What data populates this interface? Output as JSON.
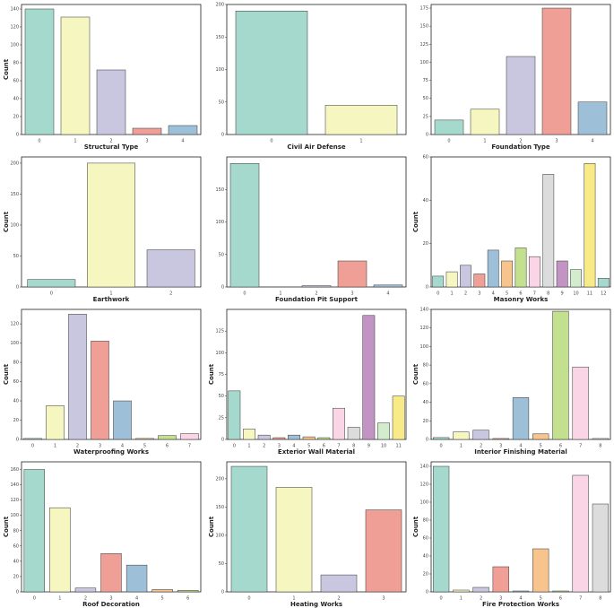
{
  "chart_data": [
    {
      "type": "bar",
      "xlabel": "Structural Type",
      "ylabel": "Count",
      "categories": [
        "0",
        "1",
        "2",
        "3",
        "4"
      ],
      "values": [
        140,
        131,
        72,
        7,
        10
      ],
      "colors": [
        "#a6d9ce",
        "#f6f6c1",
        "#c9c6df",
        "#ef9f96",
        "#9ebfd8"
      ],
      "ylim": [
        0,
        145
      ],
      "yticks": [
        0,
        20,
        40,
        60,
        80,
        100,
        120,
        140
      ]
    },
    {
      "type": "bar",
      "xlabel": "Civil Air Defense",
      "categories": [
        "0",
        "1"
      ],
      "values": [
        190,
        45
      ],
      "colors": [
        "#a6d9ce",
        "#f6f6c1"
      ],
      "ylim": [
        0,
        200
      ],
      "yticks": [
        0,
        50,
        100,
        150,
        200
      ]
    },
    {
      "type": "bar",
      "xlabel": "Foundation Type",
      "categories": [
        "0",
        "1",
        "2",
        "3",
        "4"
      ],
      "values": [
        20,
        35,
        108,
        175,
        45
      ],
      "colors": [
        "#a6d9ce",
        "#f6f6c1",
        "#c9c6df",
        "#ef9f96",
        "#9ebfd8"
      ],
      "ylim": [
        0,
        180
      ],
      "yticks": [
        0,
        25,
        50,
        75,
        100,
        125,
        150,
        175
      ]
    },
    {
      "type": "bar",
      "xlabel": "Earthwork",
      "ylabel": "Count",
      "categories": [
        "0",
        "1",
        "2"
      ],
      "values": [
        12,
        200,
        60
      ],
      "colors": [
        "#a6d9ce",
        "#f6f6c1",
        "#c9c6df"
      ],
      "ylim": [
        0,
        210
      ],
      "yticks": [
        0,
        50,
        100,
        150,
        200
      ]
    },
    {
      "type": "bar",
      "xlabel": "Foundation Pit Support",
      "categories": [
        "0",
        "1",
        "2",
        "3",
        "4"
      ],
      "values": [
        190,
        0,
        2,
        40,
        3
      ],
      "colors": [
        "#a6d9ce",
        "#f6f6c1",
        "#c9c6df",
        "#ef9f96",
        "#9ebfd8"
      ],
      "ylim": [
        0,
        200
      ],
      "yticks": [
        0,
        50,
        100,
        150
      ]
    },
    {
      "type": "bar",
      "xlabel": "Masonry Works",
      "ylabel": "Count",
      "categories": [
        "0",
        "1",
        "2",
        "3",
        "4",
        "5",
        "6",
        "7",
        "8",
        "9",
        "10",
        "11",
        "12"
      ],
      "values": [
        5,
        7,
        10,
        6,
        17,
        12,
        18,
        14,
        52,
        12,
        8,
        57,
        4
      ],
      "colors": [
        "#a6d9ce",
        "#f6f6c1",
        "#c9c6df",
        "#ef9f96",
        "#9ebfd8",
        "#f7c48e",
        "#c3e08f",
        "#f9d5e5",
        "#dcdcdc",
        "#c393c4",
        "#d4ecce",
        "#f8ea87",
        "#a6d9ce"
      ],
      "ylim": [
        0,
        60
      ],
      "yticks": [
        0,
        20,
        40,
        60
      ]
    },
    {
      "type": "bar",
      "xlabel": "Waterproofing Works",
      "ylabel": "Count",
      "categories": [
        "0",
        "1",
        "2",
        "3",
        "4",
        "5",
        "6",
        "7"
      ],
      "values": [
        1,
        35,
        130,
        102,
        40,
        1,
        4,
        6
      ],
      "colors": [
        "#a6d9ce",
        "#f6f6c1",
        "#c9c6df",
        "#ef9f96",
        "#9ebfd8",
        "#f7c48e",
        "#c3e08f",
        "#f9d5e5"
      ],
      "ylim": [
        0,
        135
      ],
      "yticks": [
        0,
        20,
        40,
        60,
        80,
        100,
        120
      ]
    },
    {
      "type": "bar",
      "xlabel": "Exterior Wall Material",
      "ylabel": "Count",
      "categories": [
        "0",
        "1",
        "2",
        "3",
        "4",
        "5",
        "6",
        "7",
        "8",
        "9",
        "10",
        "11"
      ],
      "values": [
        56,
        12,
        5,
        2,
        5,
        3,
        2,
        36,
        14,
        143,
        19,
        50
      ],
      "colors": [
        "#a6d9ce",
        "#f6f6c1",
        "#c9c6df",
        "#ef9f96",
        "#9ebfd8",
        "#f7c48e",
        "#c3e08f",
        "#f9d5e5",
        "#dcdcdc",
        "#c393c4",
        "#d4ecce",
        "#f8ea87"
      ],
      "ylim": [
        0,
        150
      ],
      "yticks": [
        0,
        25,
        50,
        75,
        100,
        125
      ]
    },
    {
      "type": "bar",
      "xlabel": "Interior Finishing Material",
      "ylabel": "Count",
      "categories": [
        "0",
        "1",
        "2",
        "3",
        "4",
        "5",
        "6",
        "7",
        "8"
      ],
      "values": [
        2,
        8,
        10,
        1,
        45,
        6,
        138,
        78,
        1
      ],
      "colors": [
        "#a6d9ce",
        "#f6f6c1",
        "#c9c6df",
        "#ef9f96",
        "#9ebfd8",
        "#f7c48e",
        "#c3e08f",
        "#f9d5e5",
        "#dcdcdc"
      ],
      "ylim": [
        0,
        140
      ],
      "yticks": [
        0,
        20,
        40,
        60,
        80,
        100,
        120,
        140
      ]
    },
    {
      "type": "bar",
      "xlabel": "Roof Decoration",
      "ylabel": "Count",
      "categories": [
        "0",
        "1",
        "2",
        "3",
        "4",
        "5",
        "6"
      ],
      "values": [
        160,
        110,
        5,
        50,
        35,
        3,
        2
      ],
      "colors": [
        "#a6d9ce",
        "#f6f6c1",
        "#c9c6df",
        "#ef9f96",
        "#9ebfd8",
        "#f7c48e",
        "#c3e08f"
      ],
      "ylim": [
        0,
        170
      ],
      "yticks": [
        0,
        20,
        40,
        60,
        80,
        100,
        120,
        140,
        160
      ]
    },
    {
      "type": "bar",
      "xlabel": "Heating Works",
      "ylabel": "Count",
      "categories": [
        "0",
        "1",
        "2",
        "3"
      ],
      "values": [
        222,
        185,
        30,
        145
      ],
      "colors": [
        "#a6d9ce",
        "#f6f6c1",
        "#c9c6df",
        "#ef9f96"
      ],
      "ylim": [
        0,
        230
      ],
      "yticks": [
        0,
        50,
        100,
        150,
        200
      ]
    },
    {
      "type": "bar",
      "xlabel": "Fire Protection Works",
      "ylabel": "Count",
      "categories": [
        "0",
        "1",
        "2",
        "3",
        "4",
        "5",
        "6",
        "7",
        "8"
      ],
      "values": [
        140,
        2,
        5,
        28,
        1,
        48,
        1,
        130,
        98
      ],
      "colors": [
        "#a6d9ce",
        "#f6f6c1",
        "#c9c6df",
        "#ef9f96",
        "#9ebfd8",
        "#f7c48e",
        "#c3e08f",
        "#f9d5e5",
        "#dcdcdc"
      ],
      "ylim": [
        0,
        145
      ],
      "yticks": [
        0,
        20,
        40,
        60,
        80,
        100,
        120,
        140
      ]
    }
  ]
}
